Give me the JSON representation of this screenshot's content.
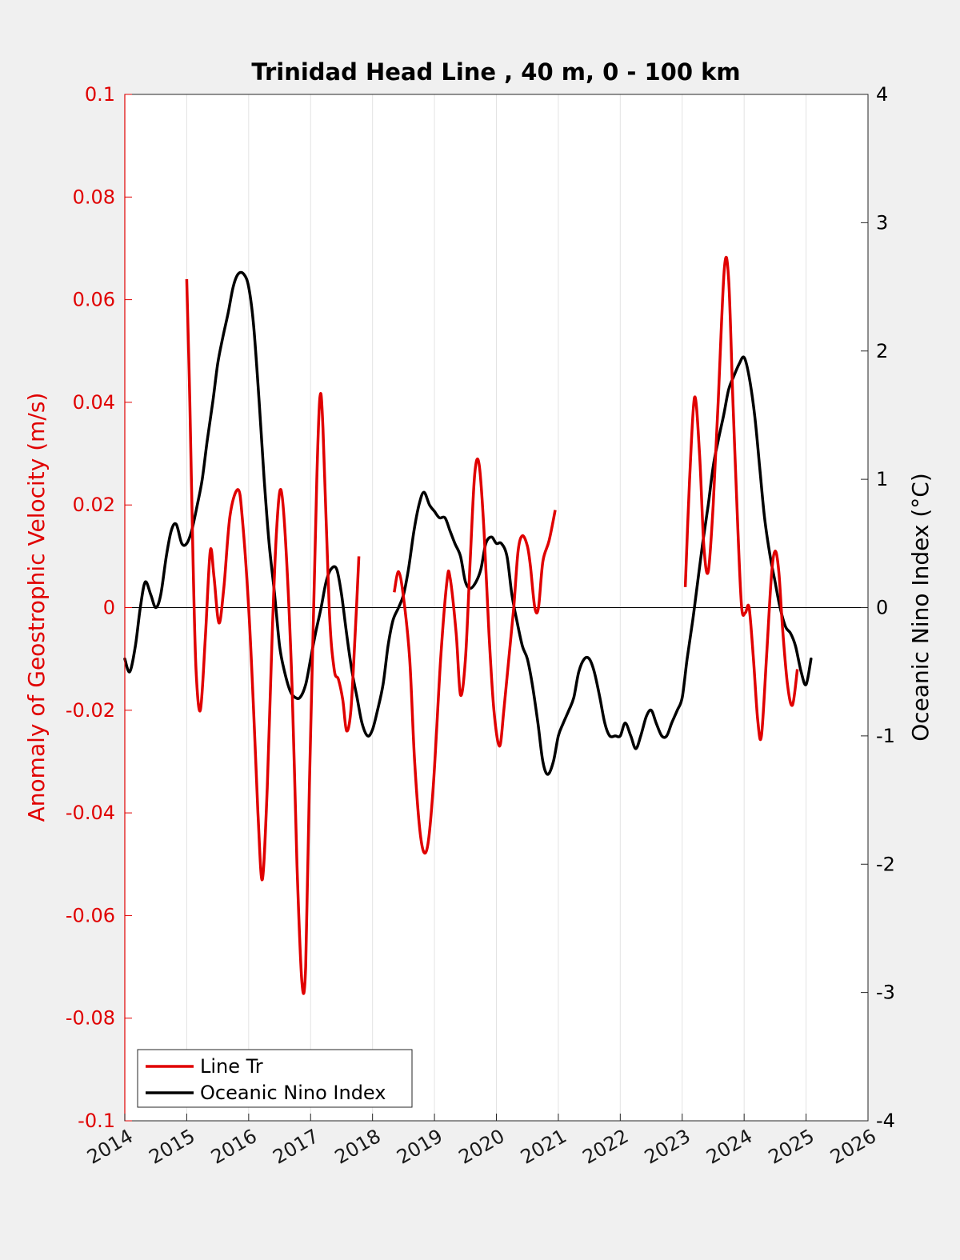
{
  "chart_data": {
    "type": "line",
    "title": "Trinidad Head Line , 40 m, 0 - 100 km",
    "ylabel_left": "Anomaly of Geostrophic Velocity (m/s)",
    "ylabel_right": "Oceanic Nino Index (°C)",
    "xlim": [
      2014,
      2026
    ],
    "ylim_left": [
      -0.1,
      0.1
    ],
    "ylim_right": [
      -4,
      4
    ],
    "x_ticks": [
      "2014",
      "2015",
      "2016",
      "2017",
      "2018",
      "2019",
      "2020",
      "2021",
      "2022",
      "2023",
      "2024",
      "2025",
      "2026"
    ],
    "y_ticks_left": [
      "0.1",
      "0.08",
      "0.06",
      "0.04",
      "0.02",
      "0",
      "-0.02",
      "-0.04",
      "-0.06",
      "-0.08",
      "-0.1"
    ],
    "y_ticks_right": [
      "4",
      "3",
      "2",
      "1",
      "0",
      "-1",
      "-2",
      "-3",
      "-4"
    ],
    "grid": "vertical",
    "legend_position": "bottom-left",
    "colors": {
      "line_tr": "#e00000",
      "oni": "#000000",
      "axis_left": "#e00000"
    },
    "series": [
      {
        "name": "Line Tr",
        "axis": "left",
        "color": "#e00000",
        "segments": [
          [
            [
              2015.0,
              0.064
            ],
            [
              2015.05,
              0.04
            ],
            [
              2015.1,
              0.01
            ],
            [
              2015.15,
              -0.012
            ],
            [
              2015.22,
              -0.02
            ],
            [
              2015.3,
              -0.006
            ],
            [
              2015.38,
              0.011
            ],
            [
              2015.44,
              0.006
            ],
            [
              2015.52,
              -0.003
            ],
            [
              2015.6,
              0.004
            ],
            [
              2015.7,
              0.018
            ],
            [
              2015.83,
              0.023
            ],
            [
              2015.9,
              0.017
            ],
            [
              2016.0,
              0.0
            ],
            [
              2016.08,
              -0.02
            ],
            [
              2016.15,
              -0.04
            ],
            [
              2016.22,
              -0.053
            ],
            [
              2016.3,
              -0.035
            ],
            [
              2016.38,
              -0.005
            ],
            [
              2016.45,
              0.015
            ],
            [
              2016.52,
              0.023
            ],
            [
              2016.6,
              0.012
            ],
            [
              2016.7,
              -0.015
            ],
            [
              2016.78,
              -0.05
            ],
            [
              2016.86,
              -0.073
            ],
            [
              2016.92,
              -0.07
            ],
            [
              2016.98,
              -0.035
            ],
            [
              2017.05,
              0.0
            ],
            [
              2017.1,
              0.025
            ],
            [
              2017.15,
              0.041
            ],
            [
              2017.2,
              0.035
            ],
            [
              2017.3,
              0.0
            ],
            [
              2017.38,
              -0.012
            ],
            [
              2017.45,
              -0.014
            ],
            [
              2017.52,
              -0.018
            ],
            [
              2017.58,
              -0.024
            ],
            [
              2017.65,
              -0.02
            ],
            [
              2017.72,
              -0.005
            ],
            [
              2017.78,
              0.01
            ]
          ],
          [
            [
              2018.35,
              0.003
            ],
            [
              2018.42,
              0.007
            ],
            [
              2018.5,
              0.002
            ],
            [
              2018.6,
              -0.01
            ],
            [
              2018.68,
              -0.03
            ],
            [
              2018.78,
              -0.045
            ],
            [
              2018.88,
              -0.047
            ],
            [
              2018.98,
              -0.035
            ],
            [
              2019.1,
              -0.01
            ],
            [
              2019.2,
              0.005
            ],
            [
              2019.25,
              0.006
            ],
            [
              2019.35,
              -0.005
            ],
            [
              2019.42,
              -0.017
            ],
            [
              2019.5,
              -0.01
            ],
            [
              2019.58,
              0.01
            ],
            [
              2019.65,
              0.026
            ],
            [
              2019.72,
              0.028
            ],
            [
              2019.8,
              0.015
            ],
            [
              2019.88,
              -0.005
            ],
            [
              2019.96,
              -0.02
            ],
            [
              2020.05,
              -0.027
            ],
            [
              2020.12,
              -0.02
            ],
            [
              2020.2,
              -0.01
            ],
            [
              2020.28,
              0.0
            ],
            [
              2020.35,
              0.011
            ],
            [
              2020.42,
              0.014
            ],
            [
              2020.5,
              0.012
            ],
            [
              2020.55,
              0.008
            ],
            [
              2020.62,
              0.0
            ],
            [
              2020.68,
              0.0
            ],
            [
              2020.75,
              0.009
            ],
            [
              2020.85,
              0.013
            ],
            [
              2020.95,
              0.019
            ]
          ],
          [
            [
              2023.05,
              0.004
            ],
            [
              2023.12,
              0.025
            ],
            [
              2023.2,
              0.041
            ],
            [
              2023.28,
              0.03
            ],
            [
              2023.35,
              0.012
            ],
            [
              2023.42,
              0.007
            ],
            [
              2023.5,
              0.02
            ],
            [
              2023.58,
              0.04
            ],
            [
              2023.68,
              0.066
            ],
            [
              2023.75,
              0.064
            ],
            [
              2023.82,
              0.04
            ],
            [
              2023.9,
              0.015
            ],
            [
              2023.96,
              0.0
            ],
            [
              2024.02,
              -0.001
            ],
            [
              2024.08,
              0.0
            ],
            [
              2024.15,
              -0.01
            ],
            [
              2024.22,
              -0.022
            ],
            [
              2024.28,
              -0.025
            ],
            [
              2024.36,
              -0.01
            ],
            [
              2024.44,
              0.006
            ],
            [
              2024.5,
              0.011
            ],
            [
              2024.56,
              0.007
            ],
            [
              2024.62,
              -0.004
            ],
            [
              2024.7,
              -0.015
            ],
            [
              2024.78,
              -0.019
            ],
            [
              2024.86,
              -0.012
            ]
          ]
        ]
      },
      {
        "name": "Oceanic Nino Index",
        "axis": "right",
        "color": "#000000",
        "points": [
          [
            2014.0,
            -0.4
          ],
          [
            2014.08,
            -0.5
          ],
          [
            2014.17,
            -0.3
          ],
          [
            2014.25,
            0.0
          ],
          [
            2014.33,
            0.2
          ],
          [
            2014.42,
            0.1
          ],
          [
            2014.5,
            0.0
          ],
          [
            2014.58,
            0.1
          ],
          [
            2014.67,
            0.4
          ],
          [
            2014.75,
            0.6
          ],
          [
            2014.83,
            0.65
          ],
          [
            2014.92,
            0.5
          ],
          [
            2015.0,
            0.5
          ],
          [
            2015.08,
            0.6
          ],
          [
            2015.17,
            0.8
          ],
          [
            2015.25,
            1.0
          ],
          [
            2015.33,
            1.3
          ],
          [
            2015.42,
            1.6
          ],
          [
            2015.5,
            1.9
          ],
          [
            2015.58,
            2.1
          ],
          [
            2015.67,
            2.3
          ],
          [
            2015.75,
            2.5
          ],
          [
            2015.83,
            2.6
          ],
          [
            2015.92,
            2.6
          ],
          [
            2016.0,
            2.5
          ],
          [
            2016.08,
            2.2
          ],
          [
            2016.17,
            1.6
          ],
          [
            2016.25,
            1.0
          ],
          [
            2016.33,
            0.5
          ],
          [
            2016.42,
            0.1
          ],
          [
            2016.5,
            -0.3
          ],
          [
            2016.58,
            -0.5
          ],
          [
            2016.67,
            -0.65
          ],
          [
            2016.75,
            -0.7
          ],
          [
            2016.83,
            -0.7
          ],
          [
            2016.92,
            -0.6
          ],
          [
            2017.0,
            -0.4
          ],
          [
            2017.08,
            -0.2
          ],
          [
            2017.17,
            0.0
          ],
          [
            2017.25,
            0.2
          ],
          [
            2017.33,
            0.3
          ],
          [
            2017.42,
            0.3
          ],
          [
            2017.5,
            0.1
          ],
          [
            2017.58,
            -0.2
          ],
          [
            2017.67,
            -0.5
          ],
          [
            2017.75,
            -0.7
          ],
          [
            2017.83,
            -0.9
          ],
          [
            2017.92,
            -1.0
          ],
          [
            2018.0,
            -0.95
          ],
          [
            2018.08,
            -0.8
          ],
          [
            2018.17,
            -0.6
          ],
          [
            2018.25,
            -0.3
          ],
          [
            2018.33,
            -0.1
          ],
          [
            2018.42,
            0.0
          ],
          [
            2018.5,
            0.1
          ],
          [
            2018.58,
            0.3
          ],
          [
            2018.67,
            0.6
          ],
          [
            2018.75,
            0.8
          ],
          [
            2018.83,
            0.9
          ],
          [
            2018.92,
            0.8
          ],
          [
            2019.0,
            0.75
          ],
          [
            2019.08,
            0.7
          ],
          [
            2019.17,
            0.7
          ],
          [
            2019.25,
            0.6
          ],
          [
            2019.33,
            0.5
          ],
          [
            2019.42,
            0.4
          ],
          [
            2019.5,
            0.2
          ],
          [
            2019.58,
            0.15
          ],
          [
            2019.67,
            0.2
          ],
          [
            2019.75,
            0.3
          ],
          [
            2019.83,
            0.5
          ],
          [
            2019.92,
            0.55
          ],
          [
            2020.0,
            0.5
          ],
          [
            2020.08,
            0.5
          ],
          [
            2020.17,
            0.4
          ],
          [
            2020.25,
            0.1
          ],
          [
            2020.33,
            -0.1
          ],
          [
            2020.42,
            -0.3
          ],
          [
            2020.5,
            -0.4
          ],
          [
            2020.58,
            -0.6
          ],
          [
            2020.67,
            -0.9
          ],
          [
            2020.75,
            -1.2
          ],
          [
            2020.83,
            -1.3
          ],
          [
            2020.92,
            -1.2
          ],
          [
            2021.0,
            -1.0
          ],
          [
            2021.08,
            -0.9
          ],
          [
            2021.17,
            -0.8
          ],
          [
            2021.25,
            -0.7
          ],
          [
            2021.33,
            -0.5
          ],
          [
            2021.42,
            -0.4
          ],
          [
            2021.5,
            -0.4
          ],
          [
            2021.58,
            -0.5
          ],
          [
            2021.67,
            -0.7
          ],
          [
            2021.75,
            -0.9
          ],
          [
            2021.83,
            -1.0
          ],
          [
            2021.92,
            -1.0
          ],
          [
            2022.0,
            -1.0
          ],
          [
            2022.08,
            -0.9
          ],
          [
            2022.17,
            -1.0
          ],
          [
            2022.25,
            -1.1
          ],
          [
            2022.33,
            -1.0
          ],
          [
            2022.42,
            -0.85
          ],
          [
            2022.5,
            -0.8
          ],
          [
            2022.58,
            -0.9
          ],
          [
            2022.67,
            -1.0
          ],
          [
            2022.75,
            -1.0
          ],
          [
            2022.83,
            -0.9
          ],
          [
            2022.92,
            -0.8
          ],
          [
            2023.0,
            -0.7
          ],
          [
            2023.08,
            -0.4
          ],
          [
            2023.17,
            -0.1
          ],
          [
            2023.25,
            0.2
          ],
          [
            2023.33,
            0.5
          ],
          [
            2023.42,
            0.8
          ],
          [
            2023.5,
            1.1
          ],
          [
            2023.58,
            1.3
          ],
          [
            2023.67,
            1.5
          ],
          [
            2023.75,
            1.7
          ],
          [
            2023.83,
            1.8
          ],
          [
            2023.92,
            1.9
          ],
          [
            2024.0,
            1.95
          ],
          [
            2024.08,
            1.8
          ],
          [
            2024.17,
            1.5
          ],
          [
            2024.25,
            1.1
          ],
          [
            2024.33,
            0.7
          ],
          [
            2024.42,
            0.4
          ],
          [
            2024.5,
            0.2
          ],
          [
            2024.58,
            0.0
          ],
          [
            2024.67,
            -0.15
          ],
          [
            2024.75,
            -0.2
          ],
          [
            2024.83,
            -0.3
          ],
          [
            2024.92,
            -0.5
          ],
          [
            2025.0,
            -0.6
          ],
          [
            2025.08,
            -0.4
          ]
        ]
      }
    ]
  }
}
